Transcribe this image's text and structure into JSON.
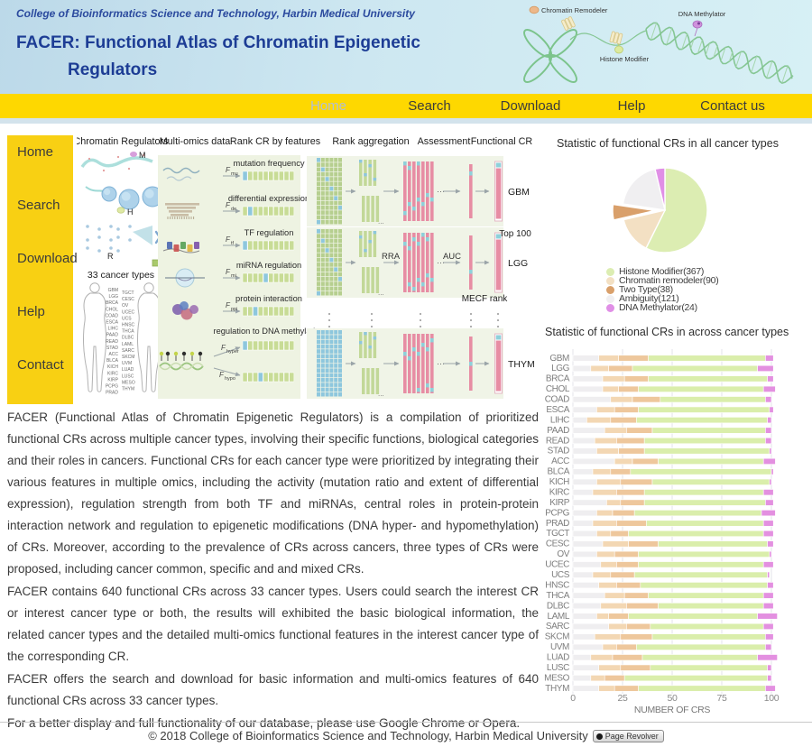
{
  "header": {
    "subtitle": "College of Bioinformatics Science and Technology, Harbin Medical University",
    "title": "FACER: Functional Atlas of Chromatin Epigenetic Regulators",
    "art_labels": [
      "Chromatin Remodeler",
      "Histone Modifier",
      "DNA Methylator"
    ]
  },
  "nav": {
    "items": [
      {
        "label": "Home",
        "active": true
      },
      {
        "label": "Search",
        "active": false
      },
      {
        "label": "Download",
        "active": false
      },
      {
        "label": "Help",
        "active": false
      },
      {
        "label": "Contact us",
        "active": false
      }
    ]
  },
  "sidebar": {
    "items": [
      "Home",
      "Search",
      "Download",
      "Help",
      "Contact"
    ]
  },
  "figure": {
    "column_headers": [
      "Chromatin Regulators",
      "Multi-omics data",
      "Rank CR by features",
      "Rank aggregation",
      "Assessment",
      "Functional CR"
    ],
    "structure_marks": [
      "M",
      "H",
      "R"
    ],
    "cancer_types_label": "33 cancer types",
    "cancer_types_col1": [
      "GBM",
      "LGG",
      "BRCA",
      "CHOL",
      "COAD",
      "ESCA",
      "LIHC",
      "PAAD",
      "READ",
      "STAD",
      "ACC",
      "BLCA",
      "KICH",
      "KIRC",
      "KIRP",
      "PCPG",
      "PRAD"
    ],
    "cancer_types_col2": [
      "TGCT",
      "CESC",
      "OV",
      "UCEC",
      "UCS",
      "HNSC",
      "THCA",
      "DLBC",
      "LAML",
      "SARC",
      "SKCM",
      "UVM",
      "LUAD",
      "LUSC",
      "MESO",
      "THYM"
    ],
    "features": [
      {
        "label": "mutation frequency",
        "f_sub": "mu"
      },
      {
        "label": "differential expression",
        "f_sub": "de"
      },
      {
        "label": "TF regulation",
        "f_sub": "tf"
      },
      {
        "label": "miRNA regulation",
        "f_sub": "mi"
      },
      {
        "label": "protein interaction",
        "f_sub": "ppi"
      },
      {
        "label": "regulation to DNA methylation",
        "f_sub": "hyper",
        "f_sub2": "hypo"
      }
    ],
    "group_labels": [
      "GBM",
      "LGG",
      "THYM"
    ],
    "annotations": {
      "rra": "RRA",
      "auc": "AUC",
      "top100": "Top 100",
      "mecf": "MECF rank"
    }
  },
  "main": {
    "paragraphs": [
      "FACER (Functional Atlas of Chromatin Epigenetic Regulators) is a compilation of prioritized functional CRs across multiple cancer types, involving their specific functions, biological categories and their roles in cancers. Functional CRs for each cancer type were prioritized by integrating their various features in multiple omics, including the activity (mutation ratio and extent of differential expression), regulation strength from both TF and miRNAs, central roles in protein-protein interaction network and regulation to epigenetic modifications (DNA hyper- and hypomethylation) of CRs. Moreover, according to the prevalence of CRs across cancers, three types of CRs were proposed, including cancer common, specific and and mixed CRs.",
      "FACER contains 640 functional CRs across 33 cancer types. Users could search the interest CR or interest cancer type or both, the results will exhibited the basic biological information, the related cancer types and the detailed multi-omics functional features in the interest cancer type of the corresponding CR.",
      "FACER offers the search and download for basic information and multi-omics features of 640 functional CRs across 33 cancer types.",
      "For a better display and full functionality of our database, please use Google Chrome or Opera."
    ]
  },
  "chart_data": [
    {
      "type": "pie",
      "title": "Statistic of functional CRs in all cancer types",
      "labels": [
        "Histone Modifier",
        "Chromatin remodeler",
        "Two Type",
        "Ambiguity",
        "DNA Methylator"
      ],
      "values": [
        367,
        90,
        38,
        121,
        24
      ],
      "colors": [
        "#dcedb2",
        "#f3e0c3",
        "#d9a06b",
        "#f0eff1",
        "#e08fe6"
      ],
      "exploded_index": 2,
      "legend_position": "bottom"
    },
    {
      "type": "bar",
      "orientation": "horizontal",
      "stacked": true,
      "title": "Statistic of functional CRs in across cancer types",
      "xlabel": "NUMBER OF CRS",
      "xticks": [
        0,
        25,
        50,
        75,
        100
      ],
      "xlim": [
        0,
        105
      ],
      "grid": true,
      "categories": [
        "GBM",
        "LGG",
        "BRCA",
        "CHOL",
        "COAD",
        "ESCA",
        "LIHC",
        "PAAD",
        "READ",
        "STAD",
        "ACC",
        "BLCA",
        "KICH",
        "KIRC",
        "KIRP",
        "PCPG",
        "PRAD",
        "TGCT",
        "CESC",
        "OV",
        "UCEC",
        "UCS",
        "HNSC",
        "THCA",
        "DLBC",
        "LAML",
        "SARC",
        "SKCM",
        "UVM",
        "LUAD",
        "LUSC",
        "MESO",
        "THYM"
      ],
      "series": [
        {
          "name": "Ambiguity",
          "color": "#efeef0",
          "values": [
            13,
            9,
            15,
            15,
            19,
            12,
            7,
            16,
            11,
            12,
            21,
            10,
            12,
            10,
            17,
            12,
            10,
            12,
            15,
            12,
            14,
            10,
            13,
            16,
            14,
            12,
            18,
            11,
            15,
            9,
            13,
            9,
            13
          ]
        },
        {
          "name": "Chromatin remodeler",
          "color": "#f3d7b3",
          "values": [
            10,
            9,
            11,
            8,
            11,
            9,
            12,
            11,
            11,
            11,
            9,
            9,
            12,
            12,
            7,
            8,
            12,
            7,
            13,
            9,
            8,
            9,
            9,
            10,
            13,
            6,
            9,
            13,
            7,
            11,
            11,
            7,
            8
          ]
        },
        {
          "name": "Two Type",
          "color": "#eec79c",
          "values": [
            15,
            12,
            12,
            10,
            14,
            12,
            13,
            13,
            14,
            13,
            13,
            10,
            16,
            14,
            12,
            11,
            15,
            9,
            15,
            12,
            11,
            12,
            12,
            12,
            16,
            10,
            12,
            16,
            10,
            15,
            15,
            10,
            12
          ]
        },
        {
          "name": "Histone Modifier",
          "color": "#daeeab",
          "values": [
            59,
            63,
            60,
            63,
            53,
            66,
            66,
            57,
            61,
            63,
            53,
            71,
            59,
            60,
            61,
            64,
            59,
            68,
            55,
            66,
            63,
            67,
            64,
            58,
            53,
            65,
            57,
            57,
            65,
            58,
            59,
            72,
            64
          ]
        },
        {
          "name": "DNA Methylator",
          "color": "#e390e0",
          "values": [
            4,
            8,
            3,
            6,
            3,
            2,
            2,
            3,
            3,
            1,
            6,
            1,
            1,
            5,
            4,
            7,
            5,
            5,
            3,
            1,
            5,
            1,
            3,
            5,
            5,
            10,
            5,
            4,
            3,
            10,
            2,
            2,
            5
          ]
        }
      ]
    }
  ],
  "footer": {
    "text": "© 2018 College of Bioinformatics Science and Technology, Harbin Medical University",
    "badge": "Page Revolver"
  }
}
